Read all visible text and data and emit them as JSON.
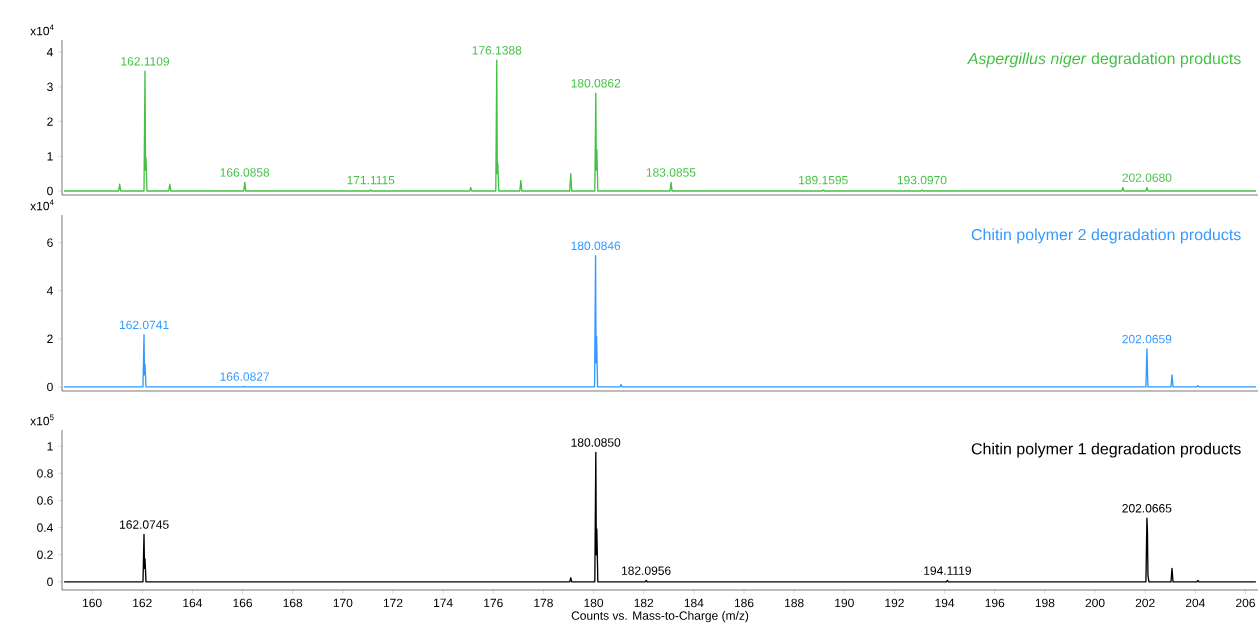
{
  "chart_data": [
    {
      "type": "line",
      "title": "*Aspergillus niger* degradation products",
      "ylabel": "x10$^{4}$",
      "series": [
        {
          "color": "#44c044",
          "x": [
            158.9,
            161.06,
            161.1,
            161.14,
            162.07,
            162.11,
            162.13,
            162.15,
            162.19,
            163.06,
            163.1,
            163.14,
            166.05,
            166.09,
            166.13,
            171.07,
            171.11,
            171.15,
            175.06,
            175.1,
            175.14,
            176.1,
            176.14,
            176.16,
            176.18,
            176.22,
            177.06,
            177.1,
            177.14,
            179.05,
            179.09,
            179.13,
            180.05,
            180.09,
            180.11,
            180.13,
            180.17,
            183.05,
            183.09,
            183.13,
            189.12,
            189.16,
            189.2,
            193.06,
            193.1,
            193.14,
            201.07,
            201.11,
            201.15,
            202.03,
            202.07,
            202.11,
            206.4
          ],
          "values": [
            0,
            0,
            0.2,
            0,
            0,
            3.45,
            0.6,
            0.95,
            0,
            0,
            0.2,
            0,
            0,
            0.25,
            0,
            0,
            0.03,
            0,
            0,
            0.1,
            0,
            0,
            3.77,
            0.5,
            0.8,
            0,
            0,
            0.3,
            0,
            0,
            0.5,
            0,
            0,
            2.82,
            0.6,
            1.2,
            0,
            0,
            0.25,
            0,
            0,
            0.03,
            0,
            0,
            0.03,
            0,
            0,
            0.1,
            0,
            0,
            0.1,
            0,
            0
          ]
        }
      ],
      "annotations": [
        {
          "text": "162.1109",
          "x": 162.1109,
          "y": 3.45
        },
        {
          "text": "166.0858",
          "x": 166.0858,
          "y": 0.25
        },
        {
          "text": "171.1115",
          "x": 171.1115,
          "y": 0.03
        },
        {
          "text": "176.1388",
          "x": 176.1388,
          "y": 3.77
        },
        {
          "text": "180.0862",
          "x": 180.0862,
          "y": 2.82
        },
        {
          "text": "183.0855",
          "x": 183.0855,
          "y": 0.25
        },
        {
          "text": "189.1595",
          "x": 189.1595,
          "y": 0.03
        },
        {
          "text": "193.0970",
          "x": 193.097,
          "y": 0.03
        },
        {
          "text": "202.0680",
          "x": 202.068,
          "y": 0.1
        }
      ],
      "xlim": [
        158.8,
        206.5
      ],
      "ylim": [
        -0.115,
        4.35
      ],
      "yticks": [
        0,
        1,
        2,
        3,
        4
      ],
      "tick_labels": "y"
    },
    {
      "type": "line",
      "title": "Chitin polymer 2 degradation products",
      "ylabel": "x10$^{4}$",
      "series": [
        {
          "color": "#3399ff",
          "x": [
            158.9,
            162.03,
            162.07,
            162.09,
            162.11,
            162.15,
            166.04,
            166.08,
            166.12,
            180.04,
            180.08,
            180.1,
            180.12,
            180.16,
            181.06,
            181.1,
            181.14,
            202.03,
            202.07,
            202.11,
            203.03,
            203.07,
            203.11,
            204.06,
            204.1,
            204.14,
            206.4
          ],
          "values": [
            0,
            0,
            2.17,
            0.5,
            0.95,
            0,
            0,
            0.02,
            0,
            0,
            5.46,
            1,
            2.1,
            0,
            0,
            0.1,
            0,
            0,
            1.58,
            0,
            0,
            0.5,
            0,
            0,
            0.05,
            0,
            0
          ]
        }
      ],
      "annotations": [
        {
          "text": "162.0741",
          "x": 162.0741,
          "y": 2.17
        },
        {
          "text": "166.0827",
          "x": 166.0827,
          "y": 0.02
        },
        {
          "text": "180.0846",
          "x": 180.0846,
          "y": 5.46
        },
        {
          "text": "202.0659",
          "x": 202.0659,
          "y": 1.58
        }
      ],
      "xlim": [
        158.8,
        206.5
      ],
      "ylim": [
        -0.17,
        7.15
      ],
      "yticks": [
        0,
        2,
        4,
        6
      ],
      "tick_labels": "y"
    },
    {
      "type": "line",
      "title": "Chitin polymer 1 degradation products",
      "ylabel": "x10$^{5}$",
      "xlabel": "Counts vs. Mass-to-Charge (m/z)",
      "series": [
        {
          "color": "#000000",
          "x": [
            158.9,
            162.03,
            162.07,
            162.09,
            162.11,
            162.15,
            179.05,
            179.09,
            179.13,
            180.05,
            180.09,
            180.11,
            180.13,
            180.17,
            182.06,
            182.1,
            182.14,
            194.07,
            194.11,
            194.15,
            202.03,
            202.07,
            202.09,
            202.11,
            202.15,
            203.03,
            203.07,
            203.11,
            204.06,
            204.1,
            204.14,
            206.4
          ],
          "values": [
            0,
            0,
            0.35,
            0.1,
            0.17,
            0,
            0,
            0.03,
            0,
            0,
            0.955,
            0.2,
            0.39,
            0,
            0,
            0.01,
            0,
            0,
            0.01,
            0,
            0,
            0.47,
            0.38,
            0.05,
            0,
            0,
            0.1,
            0,
            0,
            0.01,
            0,
            0
          ]
        }
      ],
      "annotations": [
        {
          "text": "162.0745",
          "x": 162.0745,
          "y": 0.35
        },
        {
          "text": "180.0850",
          "x": 180.085,
          "y": 0.955
        },
        {
          "text": "182.0956",
          "x": 182.0956,
          "y": 0.01
        },
        {
          "text": "194.1119",
          "x": 194.1119,
          "y": 0.01
        },
        {
          "text": "202.0665",
          "x": 202.0665,
          "y": 0.47
        }
      ],
      "xlim": [
        158.8,
        206.5
      ],
      "ylim": [
        -0.06,
        1.12
      ],
      "yticks": [
        0,
        0.2,
        0.4,
        0.6,
        0.8,
        1
      ],
      "xticks": [
        160,
        162,
        164,
        166,
        168,
        170,
        172,
        174,
        176,
        178,
        180,
        182,
        184,
        186,
        188,
        190,
        192,
        194,
        196,
        198,
        200,
        202,
        204,
        206
      ]
    }
  ]
}
